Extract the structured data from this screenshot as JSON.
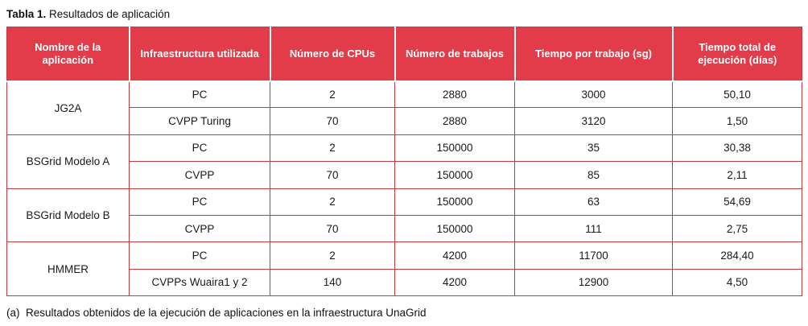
{
  "title": {
    "bold": "Tabla 1.",
    "rest": " Resultados de aplicación"
  },
  "table": {
    "headers": [
      "Nombre de la aplicación",
      "Infraestructura utilizada",
      "Número de CPUs",
      "Número de trabajos",
      "Tiempo por trabajo (sg)",
      "Tiempo total de ejecución (días)"
    ],
    "groups": [
      {
        "name": "JG2A",
        "rows": [
          [
            "PC",
            "2",
            "2880",
            "3000",
            "50,10"
          ],
          [
            "CVPP Turing",
            "70",
            "2880",
            "3120",
            "1,50"
          ]
        ]
      },
      {
        "name": "BSGrid Modelo A",
        "rows": [
          [
            "PC",
            "2",
            "150000",
            "35",
            "30,38"
          ],
          [
            "CVPP",
            "70",
            "150000",
            "85",
            "2,11"
          ]
        ]
      },
      {
        "name": "BSGrid Modelo B",
        "rows": [
          [
            "PC",
            "2",
            "150000",
            "63",
            "54,69"
          ],
          [
            "CVPP",
            "70",
            "150000",
            "111",
            "2,75"
          ]
        ]
      },
      {
        "name": "HMMER",
        "rows": [
          [
            "PC",
            "2",
            "4200",
            "11700",
            "284,40"
          ],
          [
            "CVPPs Wuaira1 y 2",
            "140",
            "4200",
            "12900",
            "4,50"
          ]
        ]
      }
    ]
  },
  "footnote": "(a)  Resultados obtenidos de la ejecución de aplicaciones en la infraestructura UnaGrid",
  "colors": {
    "header_bg": "#E23B49",
    "border": "#C53B40",
    "header_text": "#FFFFFF",
    "body_text": "#1A1A1A"
  }
}
